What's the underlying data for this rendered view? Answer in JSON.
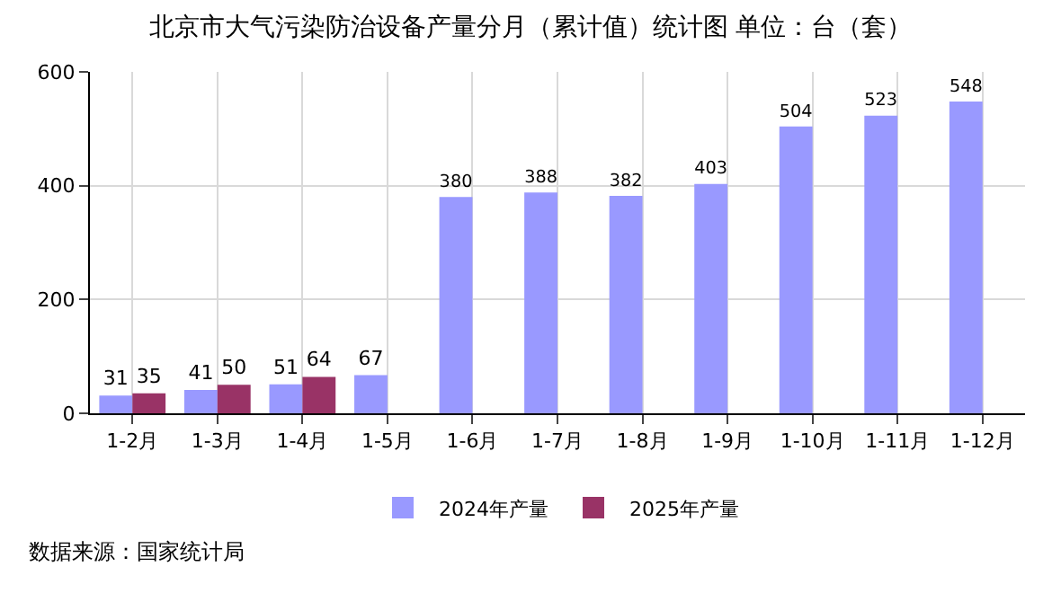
{
  "chart_data": {
    "type": "bar",
    "title": "北京市大气污染防治设备产量分月（累计值）统计图 单位：台（套）",
    "categories": [
      "1-2月",
      "1-3月",
      "1-4月",
      "1-5月",
      "1-6月",
      "1-7月",
      "1-8月",
      "1-9月",
      "1-10月",
      "1-11月",
      "1-12月"
    ],
    "series": [
      {
        "name": "2024年产量",
        "color": "#9999ff",
        "values": [
          31,
          41,
          51,
          67,
          380,
          388,
          382,
          403,
          504,
          523,
          548
        ]
      },
      {
        "name": "2025年产量",
        "color": "#993366",
        "values": [
          35,
          50,
          64,
          null,
          null,
          null,
          null,
          null,
          null,
          null,
          null
        ]
      }
    ],
    "ylim": [
      0,
      600
    ],
    "yticks": [
      0,
      200,
      400,
      600
    ],
    "grid": true,
    "legend": "bottom",
    "data_labels": true,
    "annotations": [
      "数据来源：国家统计局"
    ]
  }
}
